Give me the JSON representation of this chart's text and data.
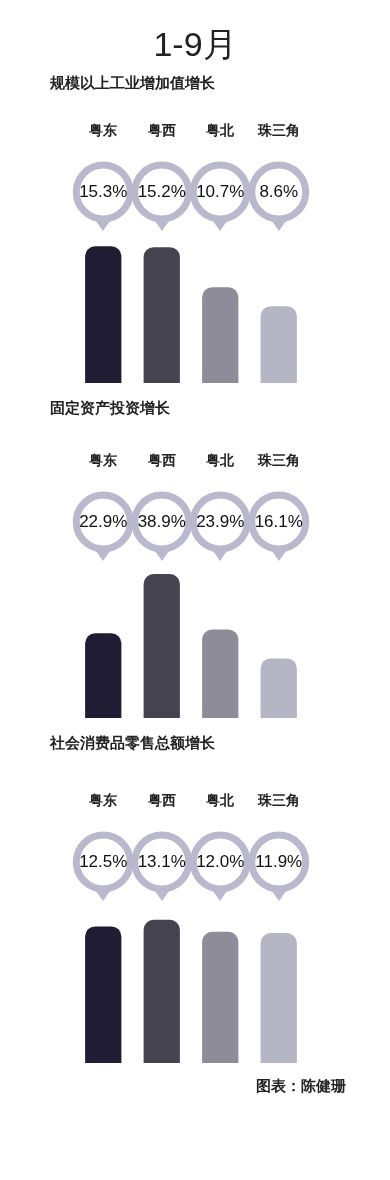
{
  "chart_data": [
    {
      "type": "bar",
      "title": "1-9月",
      "subtitle": "规模以上工业增加值增长",
      "categories": [
        "粤东",
        "粤西",
        "粤北",
        "珠三角"
      ],
      "values": [
        15.3,
        15.2,
        10.7,
        8.6
      ],
      "colors": [
        "#1f1c33",
        "#45434f",
        "#8e8c99",
        "#b6b5c4"
      ],
      "value_labels": [
        "15.3%",
        "15.2%",
        "10.7%",
        "8.6%"
      ]
    },
    {
      "type": "bar",
      "title": "固定资产投资增长",
      "categories": [
        "粤东",
        "粤西",
        "粤北",
        "珠三角"
      ],
      "values": [
        22.9,
        38.9,
        23.9,
        16.1
      ],
      "colors": [
        "#1f1c33",
        "#45434f",
        "#8e8c99",
        "#b6b5c4"
      ],
      "value_labels": [
        "22.9%",
        "38.9%",
        "23.9%",
        "16.1%"
      ]
    },
    {
      "type": "bar",
      "title": "社会消费品零售总额增长",
      "categories": [
        "粤东",
        "粤西",
        "粤北",
        "珠三角"
      ],
      "values": [
        12.5,
        13.1,
        12.0,
        11.9
      ],
      "colors": [
        "#1f1c33",
        "#45434f",
        "#8e8c99",
        "#b6b5c4"
      ],
      "value_labels": [
        "12.5%",
        "13.1%",
        "12.0%",
        "11.9%"
      ],
      "annotations": [
        "图表：陈健珊"
      ]
    }
  ]
}
